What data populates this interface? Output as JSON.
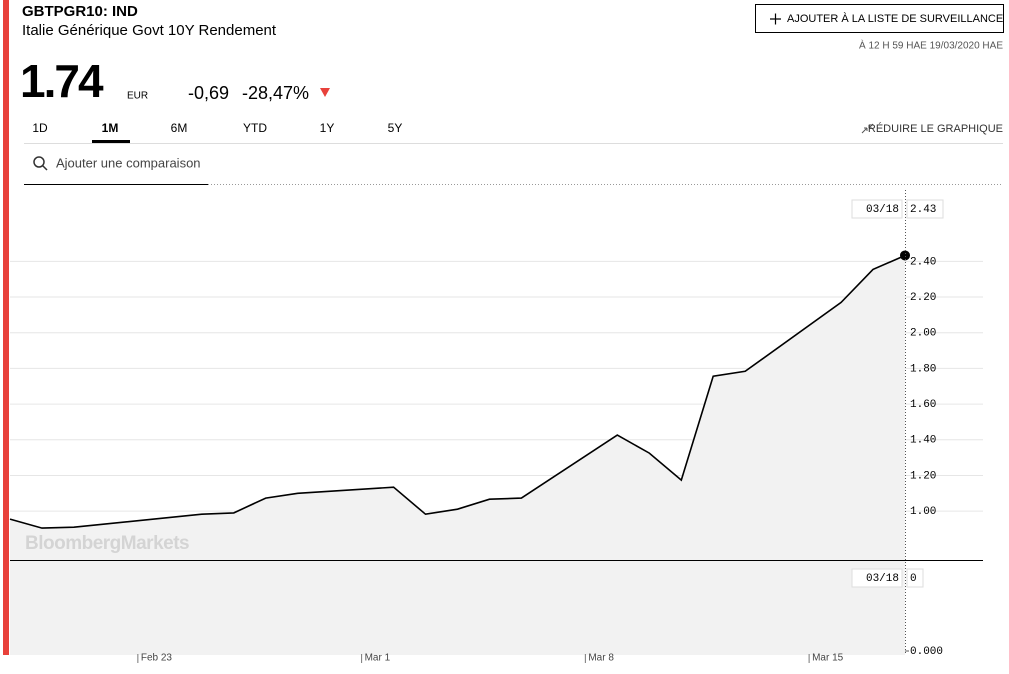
{
  "header": {
    "ticker": "GBTPGR10: IND",
    "name": "Italie Générique Govt 10Y Rendement",
    "watch_button": "AJOUTER À LA LISTE DE SURVEILLANCE",
    "timestamp": "À 12 H 59 HAE 19/03/2020 HAE"
  },
  "quote": {
    "price": "1.74",
    "currency": "EUR",
    "change": "-0,69",
    "change_pct": "-28,47%"
  },
  "tabs": [
    "1D",
    "1M",
    "6M",
    "YTD",
    "1Y",
    "5Y"
  ],
  "reduce_chart": "RÉDUIRE LE GRAPHIQUE",
  "search_placeholder": "Ajouter une comparaison",
  "watermark": "BloombergMarkets",
  "chart_data": {
    "type": "line",
    "x": [
      "Feb 19",
      "Feb 20",
      "Feb 21",
      "Feb 25",
      "Feb 26",
      "Feb 27",
      "Feb 28",
      "Mar 2",
      "Mar 3",
      "Mar 4",
      "Mar 5",
      "Mar 6",
      "Mar 9",
      "Mar 10",
      "Mar 11",
      "Mar 12",
      "Mar 13",
      "Mar 16",
      "Mar 17",
      "Mar 18"
    ],
    "values": [
      0.955,
      0.905,
      0.91,
      0.983,
      0.99,
      1.073,
      1.1,
      1.134,
      0.983,
      1.011,
      1.067,
      1.073,
      1.426,
      1.325,
      1.174,
      1.756,
      1.784,
      2.17,
      2.355,
      2.433
    ],
    "color": "#000000",
    "ylim": [
      0.726,
      2.8
    ],
    "yticks": [
      {
        "value": 1,
        "label": "1.00"
      },
      {
        "value": 1.2,
        "label": "1.20"
      },
      {
        "value": 1.4,
        "label": "1.40"
      },
      {
        "value": 1.6,
        "label": "1.60"
      },
      {
        "value": 1.8,
        "label": "1.80"
      },
      {
        "value": 2,
        "label": "2.00"
      },
      {
        "value": 2.2,
        "label": "2.20"
      },
      {
        "value": 2.4,
        "label": "2.40"
      }
    ],
    "xticks": [
      "Feb 23",
      "Mar 1",
      "Mar 8",
      "Mar 15"
    ],
    "grid": true,
    "cursor": {
      "date": "03/18",
      "value": 2.43
    },
    "lower_panel": {
      "cursor_date": "03/18",
      "cursor_value": 0,
      "yticks": [
        {
          "value": 0,
          "label": "0.000"
        }
      ]
    }
  }
}
